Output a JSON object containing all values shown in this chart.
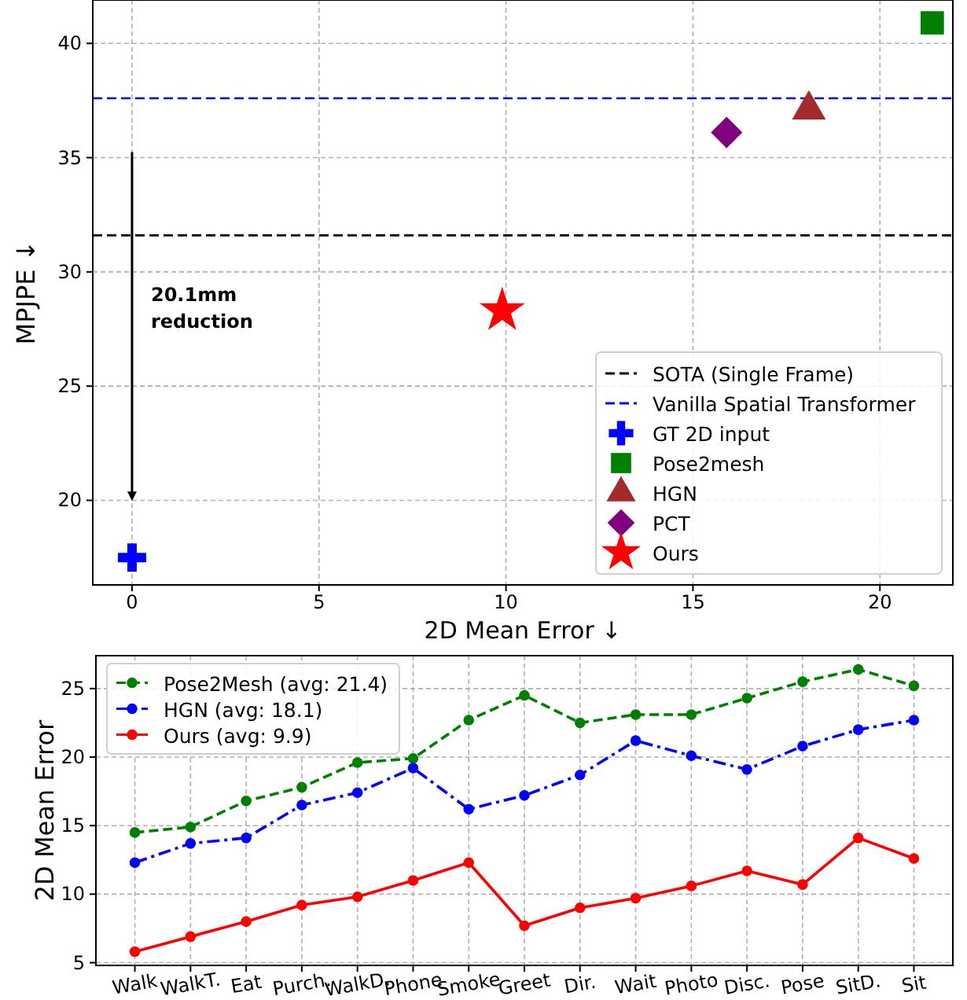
{
  "chart_data": [
    {
      "type": "scatter",
      "xlabel": "2D Mean Error ↓",
      "ylabel": "MPJPE ↓",
      "xlim": [
        -1.05,
        21.95
      ],
      "ylim": [
        16.3,
        41.9
      ],
      "xticks": [
        0,
        5,
        10,
        15,
        20
      ],
      "yticks": [
        20,
        25,
        30,
        35,
        40
      ],
      "grid": true,
      "legend": "bottom right",
      "ref_lines": [
        {
          "axis": "y",
          "value": 31.6,
          "label": "SOTA (Single Frame)",
          "color": "#000000",
          "line_style": "dashed"
        },
        {
          "axis": "y",
          "value": 37.6,
          "label": "Vanilla Spatial Transformer",
          "color": "#0000ff",
          "line_style": "dashed"
        }
      ],
      "annotations": [
        "20.1mm\nreduction"
      ],
      "series": [
        {
          "name": "GT 2D input",
          "color": "#0000ff",
          "marker": "cross",
          "x": [
            0
          ],
          "values": [
            17.5
          ]
        },
        {
          "name": "Pose2mesh",
          "color": "#008000",
          "marker": "square",
          "x": [
            21.4
          ],
          "values": [
            40.9
          ]
        },
        {
          "name": "HGN",
          "color": "#a52a2a",
          "marker": "triangle",
          "x": [
            18.1
          ],
          "values": [
            37.1
          ]
        },
        {
          "name": "PCT",
          "color": "#800080",
          "marker": "diamond",
          "x": [
            15.9
          ],
          "values": [
            36.1
          ]
        },
        {
          "name": "Ours",
          "color": "#ff0000",
          "marker": "star",
          "x": [
            9.9
          ],
          "values": [
            28.3
          ]
        }
      ]
    },
    {
      "type": "line",
      "ylabel": "2D Mean Error",
      "ylim": [
        4.8,
        27.4
      ],
      "yticks": [
        5,
        10,
        15,
        20,
        25
      ],
      "grid": true,
      "legend": "top left",
      "marker": "circle",
      "categories": [
        "Walk",
        "WalkT.",
        "Eat",
        "Purch.",
        "WalkD.",
        "Phone",
        "Smoke",
        "Greet",
        "Dir.",
        "Wait",
        "Photo",
        "Disc.",
        "Pose",
        "SitD.",
        "Sit"
      ],
      "series": [
        {
          "name": "Pose2Mesh (avg: 21.4)",
          "color": "#008000",
          "line_style": "dashed",
          "values": [
            14.5,
            14.9,
            16.8,
            17.8,
            19.6,
            19.9,
            22.7,
            24.5,
            22.5,
            23.1,
            23.1,
            24.3,
            25.5,
            26.4,
            25.2
          ]
        },
        {
          "name": "HGN (avg: 18.1)",
          "color": "#0000ff",
          "line_style": "dashdot",
          "values": [
            12.3,
            13.7,
            14.1,
            16.5,
            17.4,
            19.2,
            16.2,
            17.2,
            18.7,
            21.2,
            20.1,
            19.1,
            20.8,
            22.0,
            22.7
          ]
        },
        {
          "name": "Ours (avg: 9.9)",
          "color": "#ff0000",
          "line_style": "solid",
          "values": [
            5.8,
            6.9,
            8.0,
            9.2,
            9.8,
            11.0,
            12.3,
            7.7,
            9.0,
            9.7,
            10.6,
            11.7,
            10.7,
            14.1,
            12.6
          ]
        }
      ]
    }
  ]
}
